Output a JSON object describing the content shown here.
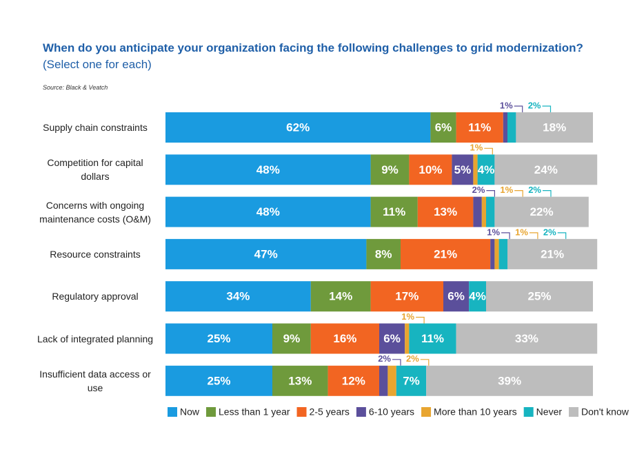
{
  "chart_data": {
    "type": "stacked-bar-horizontal",
    "title": "When do you anticipate your organization facing the following challenges to grid modernization?",
    "subtitle": "(Select one for each)",
    "source": "Source: Black & Veatch",
    "categories": [
      "Supply chain constraints",
      "Competition for capital dollars",
      "Concerns with ongoing maintenance costs (O&M)",
      "Resource constraints",
      "Regulatory approval",
      "Lack of integrated planning",
      "Insufficient data access or use"
    ],
    "series": [
      {
        "name": "Now",
        "color": "#1a9be0",
        "values": [
          62,
          48,
          48,
          47,
          34,
          25,
          25
        ],
        "value_labels": [
          "62%",
          "48%",
          "48%",
          "47%",
          "34%",
          "25%",
          "25%"
        ]
      },
      {
        "name": "Less than 1 year",
        "color": "#6f9a3c",
        "values": [
          6,
          9,
          11,
          8,
          14,
          9,
          13
        ],
        "value_labels": [
          "6%",
          "9%",
          "11%",
          "8%",
          "14%",
          "9%",
          "13%"
        ]
      },
      {
        "name": "2-5 years",
        "color": "#f26522",
        "values": [
          11,
          10,
          13,
          21,
          17,
          16,
          12
        ],
        "value_labels": [
          "11%",
          "10%",
          "13%",
          "21%",
          "17%",
          "16%",
          "12%"
        ]
      },
      {
        "name": "6-10 years",
        "color": "#5b4f9b",
        "values": [
          1,
          5,
          2,
          1,
          6,
          6,
          2
        ],
        "value_labels": [
          "1%",
          "5%",
          "2%",
          "1%",
          "6%",
          "6%",
          "2%"
        ]
      },
      {
        "name": "More than 10 years",
        "color": "#e8a530",
        "values": [
          0,
          1,
          1,
          1,
          0,
          1,
          2
        ],
        "value_labels": [
          null,
          "1%",
          "1%",
          "1%",
          null,
          "1%",
          "2%"
        ]
      },
      {
        "name": "Never",
        "color": "#17b4c0",
        "values": [
          2,
          4,
          2,
          2,
          4,
          11,
          7
        ],
        "value_labels": [
          "2%",
          "4%",
          "2%",
          "2%",
          "4%",
          "11%",
          "7%"
        ]
      },
      {
        "name": "Don't know",
        "color": "#bdbdbd",
        "values": [
          18,
          24,
          22,
          21,
          25,
          33,
          39
        ],
        "value_labels": [
          "18%",
          "24%",
          "22%",
          "21%",
          "25%",
          "33%",
          "39%"
        ]
      }
    ]
  }
}
